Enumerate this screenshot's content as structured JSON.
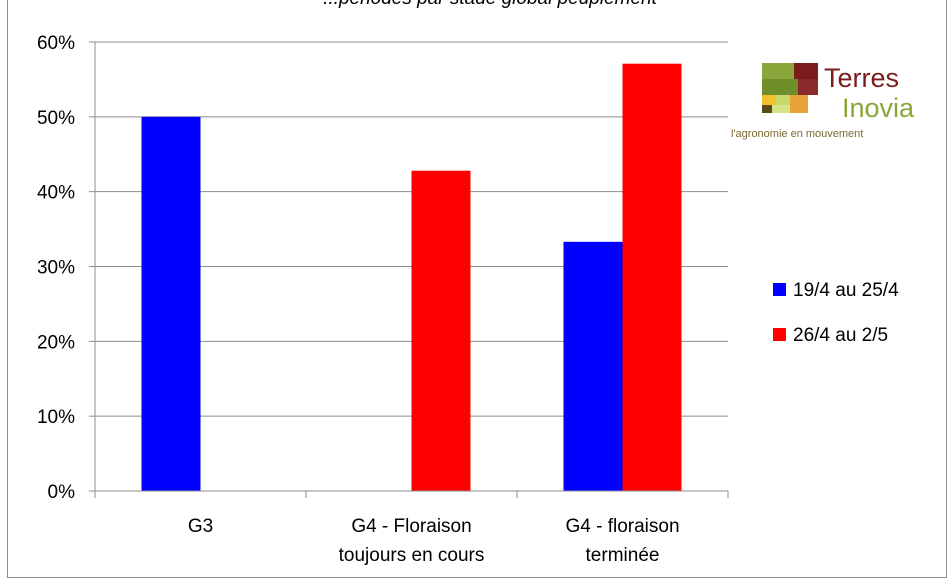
{
  "chart_data": {
    "type": "bar",
    "title": "...périodes par stade global peuplement",
    "categories": [
      [
        "G3"
      ],
      [
        "G4 - Floraison",
        "toujours en cours"
      ],
      [
        "G4 - floraison",
        "terminée"
      ]
    ],
    "series": [
      {
        "name": "19/4 au 25/4",
        "color": "#0000ff",
        "values": [
          50,
          0,
          33.3
        ]
      },
      {
        "name": "26/4 au 2/5",
        "color": "#ff0000",
        "values": [
          0,
          42.8,
          57.1
        ]
      }
    ],
    "y_ticks": [
      "0%",
      "10%",
      "20%",
      "30%",
      "40%",
      "50%",
      "60%"
    ],
    "ylim": [
      0,
      60
    ],
    "y_unit": "%",
    "grid": true,
    "legend_position": "right"
  },
  "logo": {
    "brand_line1": "Terres",
    "brand_line2": "Inovia",
    "tagline": "l'agronomie en mouvement",
    "colors": {
      "dark_red": "#7b1c1c",
      "green": "#8aa63a",
      "light_green": "#c5d96b",
      "yellow": "#f2c12e",
      "orange": "#e8a23a",
      "brown": "#5a4a1a",
      "tag_color": "#7a6a30"
    }
  }
}
